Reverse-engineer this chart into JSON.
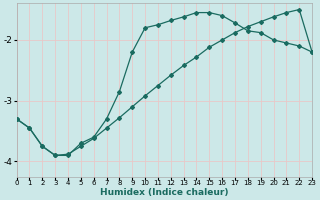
{
  "xlabel": "Humidex (Indice chaleur)",
  "bg_color": "#cce8e8",
  "grid_color": "#e8c8c8",
  "line_color": "#1a6b60",
  "curve1_x": [
    0,
    1,
    2,
    3,
    4,
    5,
    6,
    7,
    8,
    9,
    10,
    11,
    12,
    13,
    14,
    15,
    16,
    17,
    18,
    19,
    20,
    21,
    22,
    23
  ],
  "curve1_y": [
    -3.3,
    -3.45,
    -3.75,
    -3.9,
    -3.9,
    -3.7,
    -3.6,
    -3.3,
    -2.85,
    -2.2,
    -1.8,
    -1.75,
    -1.68,
    -1.62,
    -1.55,
    -1.55,
    -1.6,
    -1.72,
    -1.85,
    -1.88,
    -2.0,
    -2.05,
    -2.1,
    -2.2
  ],
  "curve2_x": [
    0,
    1,
    2,
    3,
    4,
    5,
    6,
    7,
    8,
    9,
    10,
    11,
    12,
    13,
    14,
    15,
    16,
    17,
    18,
    19,
    20,
    21,
    22,
    23
  ],
  "curve2_y": [
    -3.3,
    -3.45,
    -3.75,
    -3.9,
    -3.88,
    -3.75,
    -3.62,
    -3.45,
    -3.28,
    -3.1,
    -2.92,
    -2.75,
    -2.58,
    -2.42,
    -2.28,
    -2.12,
    -2.0,
    -1.88,
    -1.78,
    -1.7,
    -1.62,
    -1.55,
    -1.5,
    -2.2
  ],
  "xlim": [
    0,
    23
  ],
  "ylim": [
    -4.25,
    -1.4
  ],
  "yticks": [
    -4,
    -3,
    -2
  ],
  "xticks": [
    0,
    1,
    2,
    3,
    4,
    5,
    6,
    7,
    8,
    9,
    10,
    11,
    12,
    13,
    14,
    15,
    16,
    17,
    18,
    19,
    20,
    21,
    22,
    23
  ]
}
